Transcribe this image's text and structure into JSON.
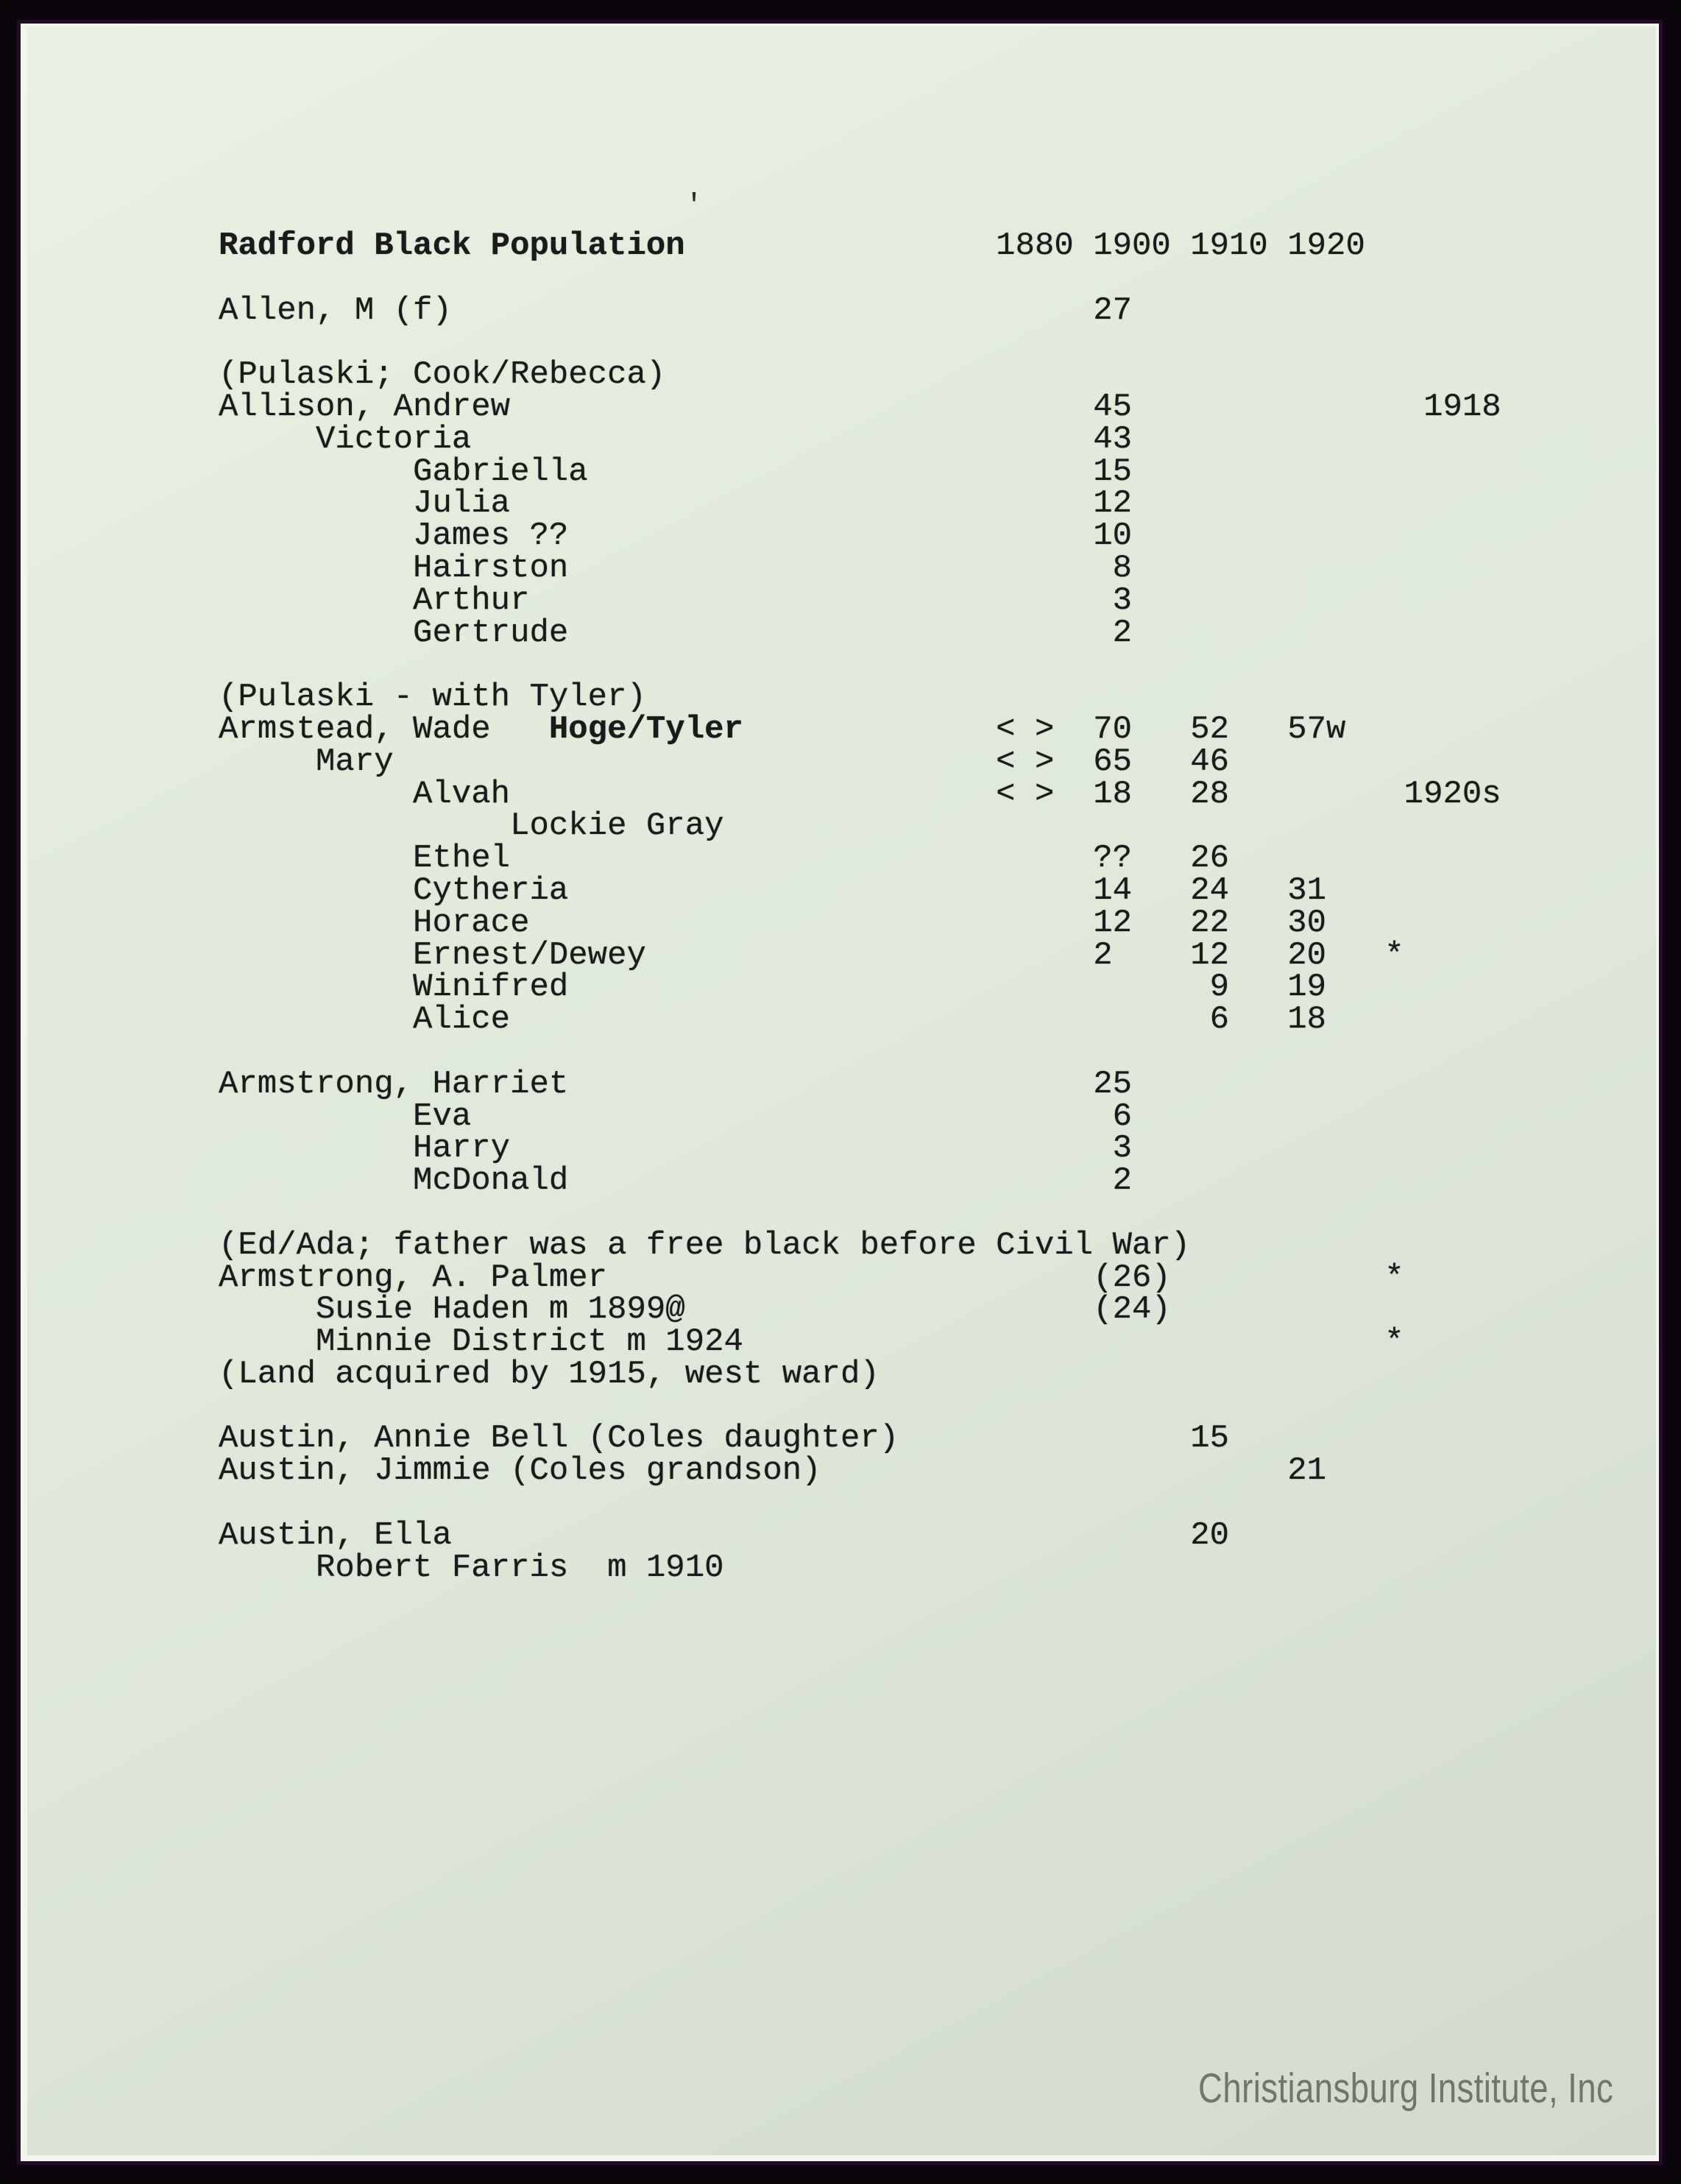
{
  "scan": {
    "watermark": "Christiansburg Institute, Inc",
    "stray_mark": "'"
  },
  "colors": {
    "paper": "#dfe8da",
    "ink": "#1a1a1a",
    "background": "#0a0709",
    "watermark-color": "#6b7264"
  },
  "document": {
    "title": "Radford Black Population",
    "years": [
      "1880",
      "1900",
      "1910",
      "1920"
    ],
    "lines": [
      {
        "name": "line-title",
        "segments": [
          {
            "t": "Radford Black Population",
            "b": true
          },
          {
            "t": "                1880 1900 1910 1920"
          }
        ]
      },
      {
        "name": "line-blank",
        "segments": []
      },
      {
        "name": "line-allen-m",
        "segments": [
          {
            "t": "Allen, M (f)                                 27"
          }
        ]
      },
      {
        "name": "line-blank",
        "segments": []
      },
      {
        "name": "line-note-pulaski-cook",
        "segments": [
          {
            "t": "(Pulaski; Cook/Rebecca)"
          }
        ]
      },
      {
        "name": "line-allison-andrew",
        "segments": [
          {
            "t": "Allison, Andrew                              45               1918"
          }
        ]
      },
      {
        "name": "line-victoria",
        "segments": [
          {
            "t": "     Victoria                                43"
          }
        ]
      },
      {
        "name": "line-gabriella",
        "segments": [
          {
            "t": "          Gabriella                          15"
          }
        ]
      },
      {
        "name": "line-julia",
        "segments": [
          {
            "t": "          Julia                              12"
          }
        ]
      },
      {
        "name": "line-james",
        "segments": [
          {
            "t": "          James ??                           10"
          }
        ]
      },
      {
        "name": "line-hairston",
        "segments": [
          {
            "t": "          Hairston                            8"
          }
        ]
      },
      {
        "name": "line-arthur",
        "segments": [
          {
            "t": "          Arthur                              3"
          }
        ]
      },
      {
        "name": "line-gertrude",
        "segments": [
          {
            "t": "          Gertrude                            2"
          }
        ]
      },
      {
        "name": "line-blank",
        "segments": []
      },
      {
        "name": "line-note-pulaski-tyler",
        "segments": [
          {
            "t": "(Pulaski - with Tyler)"
          }
        ]
      },
      {
        "name": "line-armstead-wade",
        "segments": [
          {
            "t": "Armstead, Wade   "
          },
          {
            "t": "Hoge/Tyler",
            "b": true
          },
          {
            "t": "             < >  70   52   57w"
          }
        ]
      },
      {
        "name": "line-mary",
        "segments": [
          {
            "t": "     Mary                               < >  65   46"
          }
        ]
      },
      {
        "name": "line-alvah",
        "segments": [
          {
            "t": "          Alvah                         < >  18   28         1920s"
          }
        ]
      },
      {
        "name": "line-lockie-gray",
        "segments": [
          {
            "t": "               Lockie Gray"
          }
        ]
      },
      {
        "name": "line-ethel",
        "segments": [
          {
            "t": "          Ethel                              ??   26"
          }
        ]
      },
      {
        "name": "line-cytheria",
        "segments": [
          {
            "t": "          Cytheria                           14   24   31"
          }
        ]
      },
      {
        "name": "line-horace",
        "segments": [
          {
            "t": "          Horace                             12   22   30"
          }
        ]
      },
      {
        "name": "line-ernest-dewey",
        "segments": [
          {
            "t": "          Ernest/Dewey                       2    12   20   *"
          }
        ]
      },
      {
        "name": "line-winifred",
        "segments": [
          {
            "t": "          Winifred                                 9   19"
          }
        ]
      },
      {
        "name": "line-alice",
        "segments": [
          {
            "t": "          Alice                                    6   18"
          }
        ]
      },
      {
        "name": "line-blank",
        "segments": []
      },
      {
        "name": "line-armstrong-harriet",
        "segments": [
          {
            "t": "Armstrong, Harriet                           25"
          }
        ]
      },
      {
        "name": "line-eva",
        "segments": [
          {
            "t": "          Eva                                 6"
          }
        ]
      },
      {
        "name": "line-harry",
        "segments": [
          {
            "t": "          Harry                               3"
          }
        ]
      },
      {
        "name": "line-mcdonald",
        "segments": [
          {
            "t": "          McDonald                            2"
          }
        ]
      },
      {
        "name": "line-blank",
        "segments": []
      },
      {
        "name": "line-note-ed-ada",
        "segments": [
          {
            "t": "(Ed/Ada; father was a free black before Civil War)"
          }
        ]
      },
      {
        "name": "line-armstrong-palmer",
        "segments": [
          {
            "t": "Armstrong, A. Palmer                         (26)           *"
          }
        ]
      },
      {
        "name": "line-susie-haden",
        "segments": [
          {
            "t": "     Susie Haden m 1899@                     (24)"
          }
        ]
      },
      {
        "name": "line-minnie-district",
        "segments": [
          {
            "t": "     Minnie District m 1924                                 *"
          }
        ]
      },
      {
        "name": "line-note-land",
        "segments": [
          {
            "t": "(Land acquired by 1915, west ward)"
          }
        ]
      },
      {
        "name": "line-blank",
        "segments": []
      },
      {
        "name": "line-austin-annie-bell",
        "segments": [
          {
            "t": "Austin, Annie Bell (Coles daughter)               15"
          }
        ]
      },
      {
        "name": "line-austin-jimmie",
        "segments": [
          {
            "t": "Austin, Jimmie (Coles grandson)                        21"
          }
        ]
      },
      {
        "name": "line-blank",
        "segments": []
      },
      {
        "name": "line-austin-ella",
        "segments": [
          {
            "t": "Austin, Ella                                      20"
          }
        ]
      },
      {
        "name": "line-robert-farris",
        "segments": [
          {
            "t": "     Robert Farris  m 1910"
          }
        ]
      }
    ]
  }
}
